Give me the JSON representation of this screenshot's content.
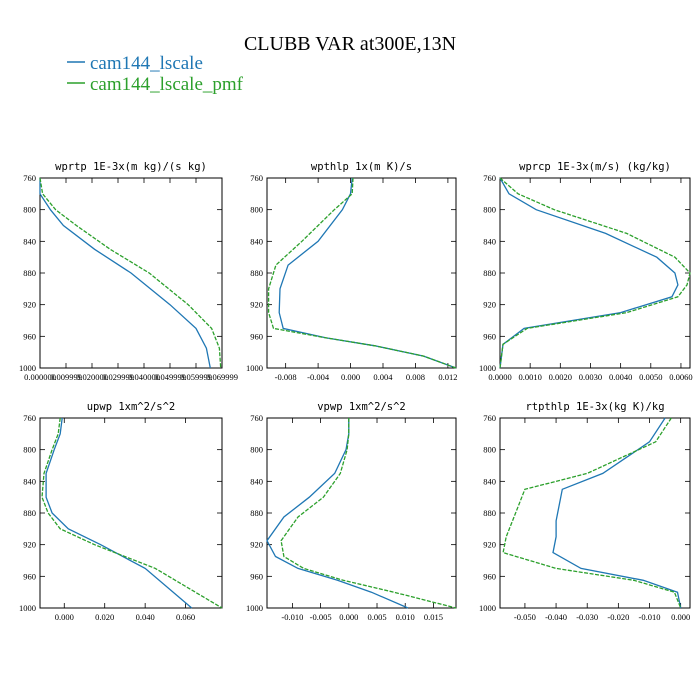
{
  "title": "CLUBB VAR at300E,13N",
  "legend": [
    {
      "name": "cam144_lscale",
      "color": "#1f77b4"
    },
    {
      "name": "cam144_lscale_pmf",
      "color": "#2ca02c"
    }
  ],
  "chart_data": [
    {
      "type": "line",
      "title": "wprtp   1E-3x(m kg)/(s kg)",
      "xlim": [
        0.0,
        0.07
      ],
      "ylim": [
        760,
        1000
      ],
      "y_inverted": true,
      "xticks": [
        0.0,
        0.01,
        0.02,
        0.03,
        0.04,
        0.05,
        0.06,
        0.07
      ],
      "xtick_labels": [
        "0.000000",
        "0.009999",
        "0.020000",
        "0.029999",
        "0.040000",
        "0.049999",
        "0.059999",
        "0.069999"
      ],
      "yticks": [
        760,
        800,
        840,
        880,
        920,
        960,
        1000
      ],
      "series": [
        {
          "name": "cam144_lscale",
          "x": [
            0.0,
            0.0,
            0.004,
            0.009,
            0.021,
            0.035,
            0.05,
            0.06,
            0.064,
            0.0655
          ],
          "y": [
            760,
            780,
            800,
            820,
            850,
            880,
            920,
            950,
            975,
            1000
          ]
        },
        {
          "name": "cam144_lscale_pmf",
          "x": [
            0.0,
            0.001,
            0.006,
            0.014,
            0.027,
            0.042,
            0.057,
            0.066,
            0.069,
            0.0695
          ],
          "y": [
            760,
            780,
            800,
            820,
            850,
            880,
            920,
            950,
            975,
            1000
          ]
        }
      ]
    },
    {
      "type": "line",
      "title": "wpthlp   1x(m K)/s",
      "xlim": [
        -0.0103,
        0.013
      ],
      "ylim": [
        760,
        1000
      ],
      "y_inverted": true,
      "xticks": [
        -0.008,
        -0.004,
        0.0,
        0.004,
        0.008,
        0.012
      ],
      "xtick_labels": [
        "-0.008",
        "-0.004",
        "0.000",
        "0.004",
        "0.008",
        "0.012"
      ],
      "yticks": [
        760,
        800,
        840,
        880,
        920,
        960,
        1000
      ],
      "series": [
        {
          "name": "cam144_lscale",
          "x": [
            0.0002,
            0.0,
            -0.001,
            -0.004,
            -0.0077,
            -0.0087,
            -0.0088,
            -0.0083,
            -0.003,
            0.003,
            0.009,
            0.013
          ],
          "y": [
            760,
            780,
            800,
            840,
            870,
            900,
            930,
            950,
            962,
            972,
            985,
            1000
          ]
        },
        {
          "name": "cam144_lscale_pmf",
          "x": [
            0.0003,
            0.0002,
            -0.002,
            -0.006,
            -0.0092,
            -0.0101,
            -0.0101,
            -0.0095,
            -0.003,
            0.003,
            0.009,
            0.013
          ],
          "y": [
            760,
            780,
            800,
            840,
            870,
            900,
            930,
            950,
            962,
            972,
            985,
            1000
          ]
        }
      ]
    },
    {
      "type": "line",
      "title": "wprcp   1E-3x(m/s) (kg/kg)",
      "xlim": [
        0.0,
        0.0063
      ],
      "ylim": [
        760,
        1000
      ],
      "y_inverted": true,
      "xticks": [
        0.0,
        0.001,
        0.002,
        0.003,
        0.004,
        0.005,
        0.006
      ],
      "xtick_labels": [
        "0.0000",
        "0.0010",
        "0.0020",
        "0.0030",
        "0.0040",
        "0.0050",
        "0.0060"
      ],
      "yticks": [
        760,
        800,
        840,
        880,
        920,
        960,
        1000
      ],
      "series": [
        {
          "name": "cam144_lscale",
          "x": [
            0.0,
            0.0003,
            0.0012,
            0.0035,
            0.0052,
            0.0058,
            0.0059,
            0.0057,
            0.004,
            0.0008,
            0.0001,
            0.0
          ],
          "y": [
            760,
            780,
            800,
            830,
            860,
            880,
            895,
            910,
            930,
            950,
            970,
            1000
          ]
        },
        {
          "name": "cam144_lscale_pmf",
          "x": [
            0.0,
            0.0006,
            0.0018,
            0.0042,
            0.0058,
            0.0063,
            0.0062,
            0.0059,
            0.0042,
            0.0009,
            0.0001,
            0.0
          ],
          "y": [
            760,
            780,
            800,
            830,
            860,
            880,
            895,
            910,
            930,
            950,
            970,
            1000
          ]
        }
      ]
    },
    {
      "type": "line",
      "title": "upwp   1xm^2/s^2",
      "xlim": [
        -0.012,
        0.078
      ],
      "ylim": [
        760,
        1000
      ],
      "y_inverted": true,
      "xticks": [
        0.0,
        0.02,
        0.04,
        0.06
      ],
      "xtick_labels": [
        "0.000",
        "0.020",
        "0.040",
        "0.060"
      ],
      "yticks": [
        760,
        800,
        840,
        880,
        920,
        960,
        1000
      ],
      "series": [
        {
          "name": "cam144_lscale",
          "x": [
            -0.001,
            -0.002,
            -0.005,
            -0.009,
            -0.009,
            -0.006,
            0.002,
            0.018,
            0.04,
            0.063
          ],
          "y": [
            760,
            780,
            800,
            830,
            860,
            880,
            900,
            920,
            950,
            1000
          ]
        },
        {
          "name": "cam144_lscale_pmf",
          "x": [
            -0.002,
            -0.003,
            -0.006,
            -0.01,
            -0.011,
            -0.008,
            -0.002,
            0.015,
            0.045,
            0.078
          ],
          "y": [
            760,
            780,
            800,
            830,
            860,
            880,
            900,
            920,
            950,
            1000
          ]
        }
      ]
    },
    {
      "type": "line",
      "title": "vpwp   1xm^2/s^2",
      "xlim": [
        -0.0145,
        0.019
      ],
      "ylim": [
        760,
        1000
      ],
      "y_inverted": true,
      "xticks": [
        -0.01,
        -0.005,
        0.0,
        0.005,
        0.01,
        0.015
      ],
      "xtick_labels": [
        "-0.010",
        "-0.005",
        "0.000",
        "0.005",
        "0.010",
        "0.015"
      ],
      "yticks": [
        760,
        800,
        840,
        880,
        920,
        960,
        1000
      ],
      "series": [
        {
          "name": "cam144_lscale",
          "x": [
            0.0,
            0.0,
            -0.0005,
            -0.0025,
            -0.007,
            -0.0115,
            -0.0145,
            -0.013,
            -0.009,
            -0.002,
            0.004,
            0.0105
          ],
          "y": [
            760,
            780,
            800,
            830,
            860,
            885,
            915,
            935,
            950,
            965,
            980,
            1000
          ]
        },
        {
          "name": "cam144_lscale_pmf",
          "x": [
            0.0,
            0.0,
            -0.0003,
            -0.0015,
            -0.0045,
            -0.009,
            -0.012,
            -0.0115,
            -0.008,
            -0.001,
            0.008,
            0.019
          ],
          "y": [
            760,
            780,
            800,
            830,
            860,
            885,
            915,
            935,
            950,
            965,
            980,
            1000
          ]
        }
      ]
    },
    {
      "type": "line",
      "title": "rtpthlp   1E-3x(kg K)/kg",
      "xlim": [
        -0.058,
        0.003
      ],
      "ylim": [
        760,
        1000
      ],
      "y_inverted": true,
      "xticks": [
        -0.05,
        -0.04,
        -0.03,
        -0.02,
        -0.01,
        0.0
      ],
      "xtick_labels": [
        "-0.050",
        "-0.040",
        "-0.030",
        "-0.020",
        "-0.010",
        "0.000"
      ],
      "yticks": [
        760,
        800,
        840,
        880,
        920,
        960,
        1000
      ],
      "series": [
        {
          "name": "cam144_lscale",
          "x": [
            -0.005,
            -0.01,
            -0.025,
            -0.038,
            -0.039,
            -0.04,
            -0.04,
            -0.041,
            -0.032,
            -0.012,
            -0.001,
            0.0
          ],
          "y": [
            760,
            790,
            830,
            850,
            870,
            890,
            910,
            930,
            950,
            965,
            980,
            1000
          ]
        },
        {
          "name": "cam144_lscale_pmf",
          "x": [
            -0.003,
            -0.008,
            -0.03,
            -0.05,
            -0.052,
            -0.054,
            -0.056,
            -0.057,
            -0.04,
            -0.015,
            -0.002,
            0.0
          ],
          "y": [
            760,
            790,
            830,
            850,
            870,
            890,
            910,
            930,
            950,
            965,
            980,
            1000
          ]
        }
      ]
    }
  ]
}
